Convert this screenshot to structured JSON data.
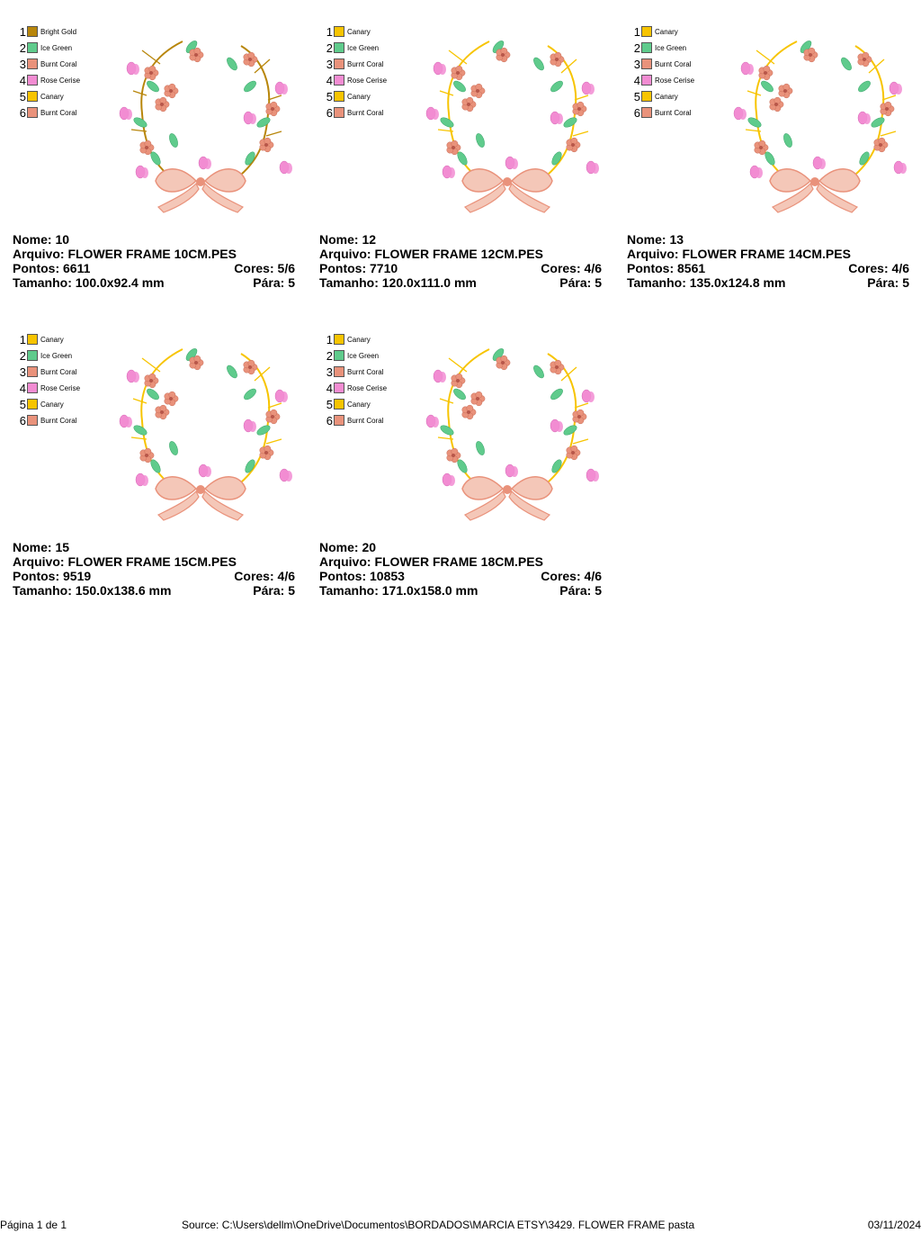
{
  "labels": {
    "nome": "Nome:",
    "arquivo": "Arquivo:",
    "pontos": "Pontos:",
    "cores": "Cores:",
    "tamanho": "Tamanho:",
    "para": "Pára:"
  },
  "designs": [
    {
      "nome": "10",
      "arquivo": "FLOWER FRAME 10CM.PES",
      "pontos": "6611",
      "cores": "5/6",
      "tamanho": "100.0x92.4 mm",
      "para": "5",
      "colors": [
        {
          "num": "1",
          "name": "Bright Gold",
          "hex": "#B8860B"
        },
        {
          "num": "2",
          "name": "Ice Green",
          "hex": "#5FCB8C"
        },
        {
          "num": "3",
          "name": "Burnt Coral",
          "hex": "#E9927B"
        },
        {
          "num": "4",
          "name": "Rose Cerise",
          "hex": "#F28CD2"
        },
        {
          "num": "5",
          "name": "Canary",
          "hex": "#F7C400"
        },
        {
          "num": "6",
          "name": "Burnt Coral",
          "hex": "#E9927B"
        }
      ]
    },
    {
      "nome": "12",
      "arquivo": "FLOWER FRAME 12CM.PES",
      "pontos": "7710",
      "cores": "4/6",
      "tamanho": "120.0x111.0 mm",
      "para": "5",
      "colors": [
        {
          "num": "1",
          "name": "Canary",
          "hex": "#F7C400"
        },
        {
          "num": "2",
          "name": "Ice Green",
          "hex": "#5FCB8C"
        },
        {
          "num": "3",
          "name": "Burnt Coral",
          "hex": "#E9927B"
        },
        {
          "num": "4",
          "name": "Rose Cerise",
          "hex": "#F28CD2"
        },
        {
          "num": "5",
          "name": "Canary",
          "hex": "#F7C400"
        },
        {
          "num": "6",
          "name": "Burnt Coral",
          "hex": "#E9927B"
        }
      ]
    },
    {
      "nome": "13",
      "arquivo": "FLOWER FRAME 14CM.PES",
      "pontos": "8561",
      "cores": "4/6",
      "tamanho": "135.0x124.8 mm",
      "para": "5",
      "colors": [
        {
          "num": "1",
          "name": "Canary",
          "hex": "#F7C400"
        },
        {
          "num": "2",
          "name": "Ice Green",
          "hex": "#5FCB8C"
        },
        {
          "num": "3",
          "name": "Burnt Coral",
          "hex": "#E9927B"
        },
        {
          "num": "4",
          "name": "Rose Cerise",
          "hex": "#F28CD2"
        },
        {
          "num": "5",
          "name": "Canary",
          "hex": "#F7C400"
        },
        {
          "num": "6",
          "name": "Burnt Coral",
          "hex": "#E9927B"
        }
      ]
    },
    {
      "nome": "15",
      "arquivo": "FLOWER FRAME 15CM.PES",
      "pontos": "9519",
      "cores": "4/6",
      "tamanho": "150.0x138.6 mm",
      "para": "5",
      "colors": [
        {
          "num": "1",
          "name": "Canary",
          "hex": "#F7C400"
        },
        {
          "num": "2",
          "name": "Ice Green",
          "hex": "#5FCB8C"
        },
        {
          "num": "3",
          "name": "Burnt Coral",
          "hex": "#E9927B"
        },
        {
          "num": "4",
          "name": "Rose Cerise",
          "hex": "#F28CD2"
        },
        {
          "num": "5",
          "name": "Canary",
          "hex": "#F7C400"
        },
        {
          "num": "6",
          "name": "Burnt Coral",
          "hex": "#E9927B"
        }
      ]
    },
    {
      "nome": "20",
      "arquivo": "FLOWER FRAME 18CM.PES",
      "pontos": "10853",
      "cores": "4/6",
      "tamanho": "171.0x158.0 mm",
      "para": "5",
      "colors": [
        {
          "num": "1",
          "name": "Canary",
          "hex": "#F7C400"
        },
        {
          "num": "2",
          "name": "Ice Green",
          "hex": "#5FCB8C"
        },
        {
          "num": "3",
          "name": "Burnt Coral",
          "hex": "#E9927B"
        },
        {
          "num": "4",
          "name": "Rose Cerise",
          "hex": "#F28CD2"
        },
        {
          "num": "5",
          "name": "Canary",
          "hex": "#F7C400"
        },
        {
          "num": "6",
          "name": "Burnt Coral",
          "hex": "#E9927B"
        }
      ]
    }
  ],
  "footer": {
    "page": "Página 1 de 1",
    "source": "Source: C:\\Users\\dellm\\OneDrive\\Documentos\\BORDADOS\\MARCIA ETSY\\3429. FLOWER FRAME pasta",
    "date": "03/11/2024"
  }
}
